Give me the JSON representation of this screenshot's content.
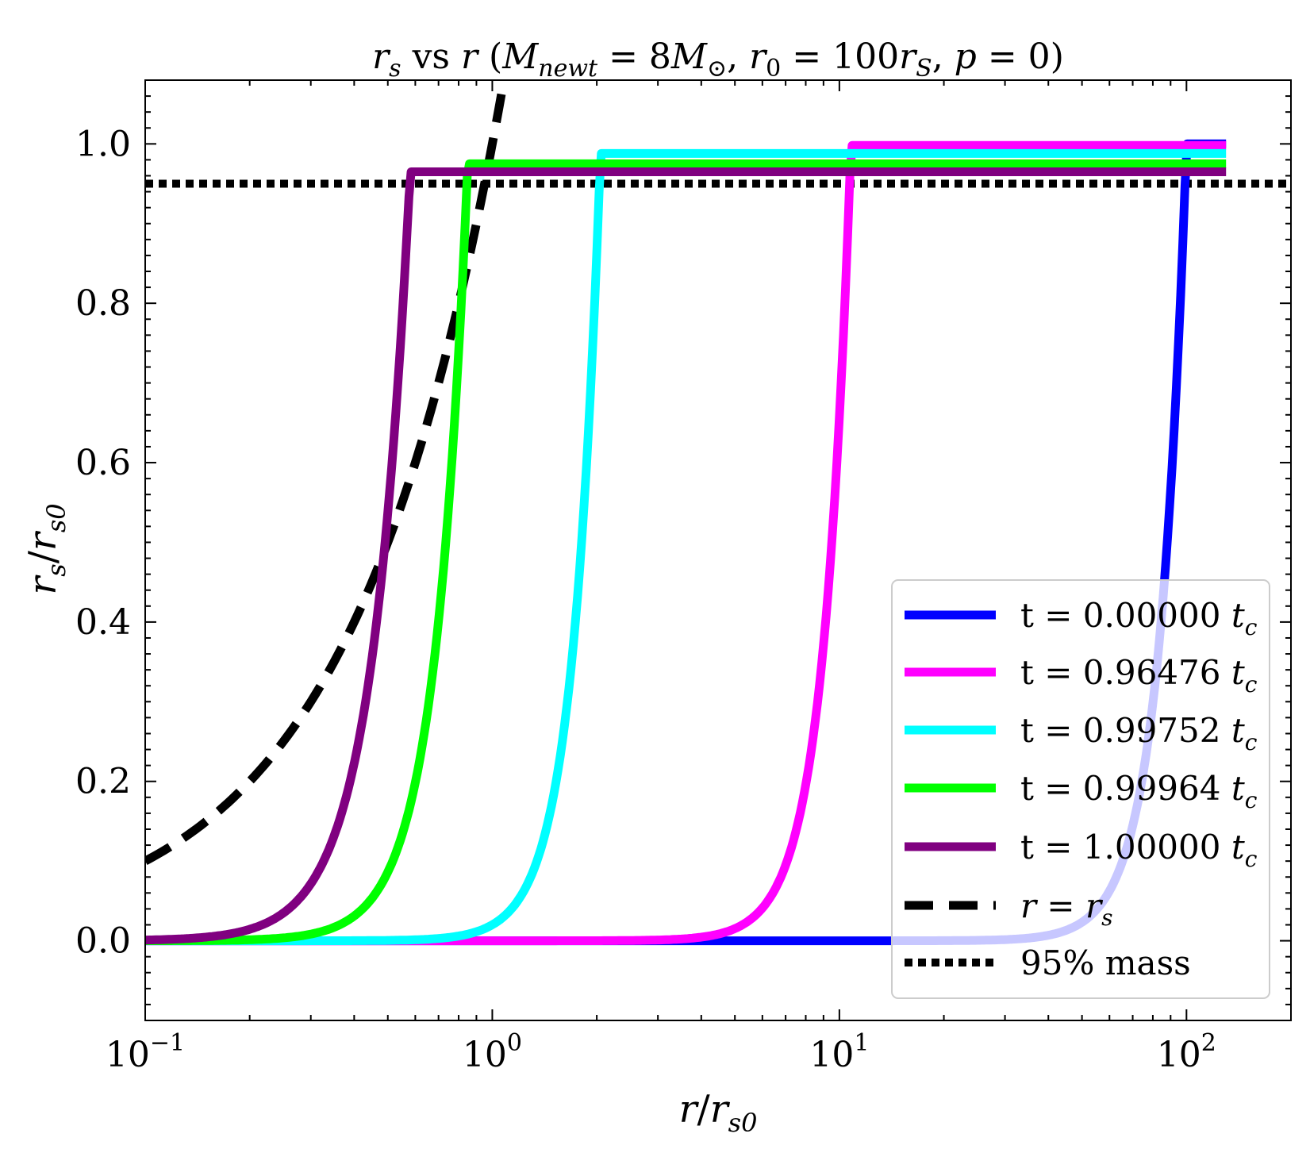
{
  "chart_data": {
    "type": "line",
    "title": "r_s vs r (M_newt = 8M_⊙, r_0 = 100r_S, p = 0)",
    "title_parts": {
      "lhs": "r",
      "lhs_sub": "s",
      "vs": " vs ",
      "rhs": "r",
      "open": " (",
      "m": "M",
      "m_sub": "newt",
      "eq1": " = 8",
      "m2": "M",
      "sun": "⊙",
      "sep1": ", ",
      "r0": "r",
      "r0_sub": "0",
      "eq2": " = 100",
      "rs": "r",
      "rs_sub": "S",
      "sep2": ", ",
      "p": "p",
      "eq3": " = 0",
      "close": ")"
    },
    "xlabel": "r/r_s0",
    "ylabel": "r_s/r_s0",
    "xlabel_parts": {
      "a": "r",
      "slash": "/",
      "b": "r",
      "b_sub": "s0"
    },
    "ylabel_parts": {
      "a": "r",
      "a_sub": "s",
      "slash": "/",
      "b": "r",
      "b_sub": "s0"
    },
    "xscale": "log",
    "xlim": [
      0.1,
      200
    ],
    "ylim": [
      -0.1,
      1.08
    ],
    "yticks": [
      0.0,
      0.2,
      0.4,
      0.6,
      0.8,
      1.0
    ],
    "ytick_labels": [
      "0.0",
      "0.2",
      "0.4",
      "0.6",
      "0.8",
      "1.0"
    ],
    "xticks": [
      0.1,
      1,
      10,
      100
    ],
    "xtick_labels": [
      {
        "base": "10",
        "exp": "−1"
      },
      {
        "base": "10",
        "exp": "0"
      },
      {
        "base": "10",
        "exp": "1"
      },
      {
        "base": "10",
        "exp": "2"
      }
    ],
    "legend_position": "lower-right",
    "series": [
      {
        "name": "t = 0.00000 t_c",
        "label_main": "t = 0.00000 ",
        "label_var": "t",
        "label_sub": "c",
        "color": "#0000ff",
        "style": "solid",
        "transition": 100,
        "plateau": 1.0,
        "width": 0.08
      },
      {
        "name": "t = 0.96476 t_c",
        "label_main": "t = 0.96476 ",
        "label_var": "t",
        "label_sub": "c",
        "color": "#ff00ff",
        "style": "solid",
        "transition": 10.8,
        "plateau": 0.998,
        "width": 0.08
      },
      {
        "name": "t = 0.99752 t_c",
        "label_main": "t = 0.99752 ",
        "label_var": "t",
        "label_sub": "c",
        "color": "#00ffff",
        "style": "solid",
        "transition": 2.05,
        "plateau": 0.988,
        "width": 0.08
      },
      {
        "name": "t = 0.99964 t_c",
        "label_main": "t = 0.99964 ",
        "label_var": "t",
        "label_sub": "c",
        "color": "#00ff00",
        "style": "solid",
        "transition": 0.85,
        "plateau": 0.975,
        "width": 0.095
      },
      {
        "name": "t = 1.00000 t_c",
        "label_main": "t = 1.00000 ",
        "label_var": "t",
        "label_sub": "c",
        "color": "#800080",
        "style": "solid",
        "transition": 0.58,
        "plateau": 0.965,
        "width": 0.11
      }
    ],
    "reference_lines": [
      {
        "name": "r = r_s",
        "label_a": "r",
        "label_eq": " = ",
        "label_b": "r",
        "label_sub": "s",
        "color": "#000000",
        "style": "dashed",
        "equation": "y = x"
      },
      {
        "name": "95% mass",
        "label": "95% mass",
        "color": "#000000",
        "style": "dotted",
        "y": 0.95
      }
    ],
    "x_end": 130
  }
}
